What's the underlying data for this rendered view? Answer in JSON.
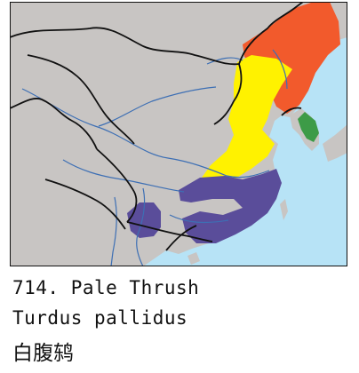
{
  "map": {
    "colors": {
      "sea": "#b7e3f6",
      "land": "#c8c5c3",
      "border": "#111111",
      "river": "#3d6fb4",
      "breeding_north": "#f25a2c",
      "breeding_south": "#fff200",
      "wintering": "#5a4d9a",
      "resident_korea": "#3d9b47"
    },
    "legend": []
  },
  "caption": {
    "number_and_name": "714. Pale Thrush",
    "scientific_name": "Turdus pallidus",
    "chinese_name": "白腹鸫"
  }
}
